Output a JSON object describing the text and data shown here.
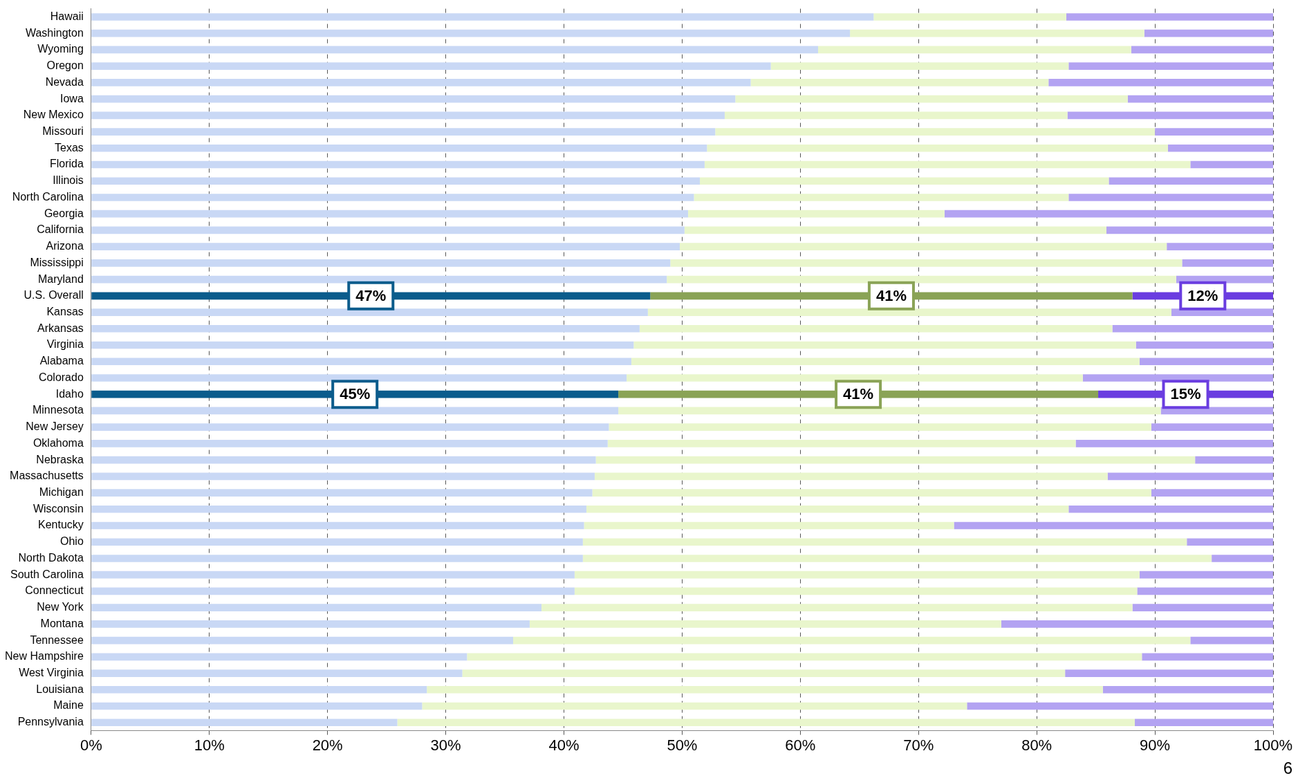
{
  "chart_data": {
    "type": "bar",
    "orientation": "horizontal",
    "stacked": true,
    "grid": "x",
    "categories": [
      "Hawaii",
      "Washington",
      "Wyoming",
      "Oregon",
      "Nevada",
      "Iowa",
      "New Mexico",
      "Missouri",
      "Texas",
      "Florida",
      "Illinois",
      "North Carolina",
      "Georgia",
      "California",
      "Arizona",
      "Mississippi",
      "Maryland",
      "U.S. Overall",
      "Kansas",
      "Arkansas",
      "Virginia",
      "Alabama",
      "Colorado",
      "Idaho",
      "Minnesota",
      "New Jersey",
      "Oklahoma",
      "Nebraska",
      "Massachusetts",
      "Michigan",
      "Wisconsin",
      "Kentucky",
      "Ohio",
      "North Dakota",
      "South Carolina",
      "Connecticut",
      "New York",
      "Montana",
      "Tennessee",
      "New Hampshire",
      "West Virginia",
      "Louisiana",
      "Maine",
      "Pennsylvania"
    ],
    "series": [
      {
        "colors": [
          "#c9d8f5",
          "#c9d8f5",
          "#c9d8f5",
          "#c9d8f5",
          "#c9d8f5",
          "#c9d8f5",
          "#c9d8f5",
          "#c9d8f5",
          "#c9d8f5",
          "#c9d8f5",
          "#c9d8f5",
          "#c9d8f5",
          "#c9d8f5",
          "#c9d8f5",
          "#c9d8f5",
          "#c9d8f5",
          "#c9d8f5",
          "#0b5c8c",
          "#c9d8f5",
          "#c9d8f5",
          "#c9d8f5",
          "#c9d8f5",
          "#c9d8f5",
          "#0b5c8c",
          "#c9d8f5",
          "#c9d8f5",
          "#c9d8f5",
          "#c9d8f5",
          "#c9d8f5",
          "#c9d8f5",
          "#c9d8f5",
          "#c9d8f5",
          "#c9d8f5",
          "#c9d8f5",
          "#c9d8f5",
          "#c9d8f5",
          "#c9d8f5",
          "#c9d8f5",
          "#c9d8f5",
          "#c9d8f5",
          "#c9d8f5",
          "#c9d8f5",
          "#c9d8f5",
          "#c9d8f5"
        ],
        "values": [
          66.2,
          64.2,
          61.5,
          57.5,
          55.8,
          54.5,
          53.6,
          52.8,
          52.1,
          51.9,
          51.5,
          51.0,
          50.5,
          50.2,
          49.8,
          49.0,
          48.7,
          47.3,
          47.1,
          46.4,
          45.9,
          45.7,
          45.3,
          44.6,
          44.6,
          43.8,
          43.7,
          42.7,
          42.6,
          42.4,
          41.9,
          41.7,
          41.6,
          41.6,
          40.9,
          40.9,
          38.1,
          37.1,
          35.7,
          31.8,
          31.4,
          28.4,
          28.0,
          25.9
        ],
        "value_labels": [
          null,
          null,
          null,
          null,
          null,
          null,
          null,
          null,
          null,
          null,
          null,
          null,
          null,
          null,
          null,
          null,
          null,
          "47%",
          null,
          null,
          null,
          null,
          null,
          "45%",
          null,
          null,
          null,
          null,
          null,
          null,
          null,
          null,
          null,
          null,
          null,
          null,
          null,
          null,
          null,
          null,
          null,
          null,
          null,
          null
        ]
      },
      {
        "colors": [
          "#e9f6cc",
          "#e9f6cc",
          "#e9f6cc",
          "#e9f6cc",
          "#e9f6cc",
          "#e9f6cc",
          "#e9f6cc",
          "#e9f6cc",
          "#e9f6cc",
          "#e9f6cc",
          "#e9f6cc",
          "#e9f6cc",
          "#e9f6cc",
          "#e9f6cc",
          "#e9f6cc",
          "#e9f6cc",
          "#e9f6cc",
          "#8aa356",
          "#e9f6cc",
          "#e9f6cc",
          "#e9f6cc",
          "#e9f6cc",
          "#e9f6cc",
          "#8aa356",
          "#e9f6cc",
          "#e9f6cc",
          "#e9f6cc",
          "#e9f6cc",
          "#e9f6cc",
          "#e9f6cc",
          "#e9f6cc",
          "#e9f6cc",
          "#e9f6cc",
          "#e9f6cc",
          "#e9f6cc",
          "#e9f6cc",
          "#e9f6cc",
          "#e9f6cc",
          "#e9f6cc",
          "#e9f6cc",
          "#e9f6cc",
          "#e9f6cc",
          "#e9f6cc",
          "#e9f6cc"
        ],
        "values": [
          16.3,
          24.9,
          26.5,
          25.2,
          25.2,
          33.2,
          29.0,
          37.2,
          39.0,
          41.1,
          34.6,
          31.7,
          21.7,
          35.7,
          41.2,
          43.3,
          43.1,
          40.8,
          44.3,
          40.0,
          42.5,
          43.0,
          38.6,
          40.6,
          45.9,
          45.9,
          39.6,
          50.7,
          43.4,
          47.3,
          40.8,
          31.3,
          51.1,
          53.2,
          47.8,
          47.6,
          50.0,
          39.9,
          57.3,
          57.1,
          51.0,
          57.2,
          46.1,
          62.4
        ],
        "value_labels": [
          null,
          null,
          null,
          null,
          null,
          null,
          null,
          null,
          null,
          null,
          null,
          null,
          null,
          null,
          null,
          null,
          null,
          "41%",
          null,
          null,
          null,
          null,
          null,
          "41%",
          null,
          null,
          null,
          null,
          null,
          null,
          null,
          null,
          null,
          null,
          null,
          null,
          null,
          null,
          null,
          null,
          null,
          null,
          null,
          null
        ]
      },
      {
        "colors": [
          "#b3a3f2",
          "#b3a3f2",
          "#b3a3f2",
          "#b3a3f2",
          "#b3a3f2",
          "#b3a3f2",
          "#b3a3f2",
          "#b3a3f2",
          "#b3a3f2",
          "#b3a3f2",
          "#b3a3f2",
          "#b3a3f2",
          "#b3a3f2",
          "#b3a3f2",
          "#b3a3f2",
          "#b3a3f2",
          "#b3a3f2",
          "#6a3de0",
          "#b3a3f2",
          "#b3a3f2",
          "#b3a3f2",
          "#b3a3f2",
          "#b3a3f2",
          "#6a3de0",
          "#b3a3f2",
          "#b3a3f2",
          "#b3a3f2",
          "#b3a3f2",
          "#b3a3f2",
          "#b3a3f2",
          "#b3a3f2",
          "#b3a3f2",
          "#b3a3f2",
          "#b3a3f2",
          "#b3a3f2",
          "#b3a3f2",
          "#b3a3f2",
          "#b3a3f2",
          "#b3a3f2",
          "#b3a3f2",
          "#b3a3f2",
          "#b3a3f2",
          "#b3a3f2",
          "#b3a3f2"
        ],
        "values": [
          17.5,
          10.9,
          12.0,
          17.3,
          19.0,
          12.3,
          17.4,
          10.0,
          8.9,
          7.0,
          13.9,
          17.3,
          27.8,
          14.1,
          9.0,
          7.7,
          8.2,
          11.9,
          8.6,
          13.6,
          11.6,
          11.3,
          16.1,
          14.8,
          9.5,
          10.3,
          16.7,
          6.6,
          14.0,
          10.3,
          17.3,
          27.0,
          7.3,
          5.2,
          11.3,
          11.5,
          11.9,
          23.0,
          7.0,
          11.1,
          17.6,
          14.4,
          25.9,
          11.7
        ],
        "value_labels": [
          null,
          null,
          null,
          null,
          null,
          null,
          null,
          null,
          null,
          null,
          null,
          null,
          null,
          null,
          null,
          null,
          null,
          "12%",
          null,
          null,
          null,
          null,
          null,
          "15%",
          null,
          null,
          null,
          null,
          null,
          null,
          null,
          null,
          null,
          null,
          null,
          null,
          null,
          null,
          null,
          null,
          null,
          null,
          null,
          null
        ]
      }
    ],
    "xlim": [
      0,
      100
    ],
    "xticks": [
      {
        "value": 0,
        "label": "0%"
      },
      {
        "value": 10,
        "label": "10%"
      },
      {
        "value": 20,
        "label": "20%"
      },
      {
        "value": 30,
        "label": "30%"
      },
      {
        "value": 40,
        "label": "40%"
      },
      {
        "value": 50,
        "label": "50%"
      },
      {
        "value": 60,
        "label": "60%"
      },
      {
        "value": 70,
        "label": "70%"
      },
      {
        "value": 80,
        "label": "80%"
      },
      {
        "value": 90,
        "label": "90%"
      },
      {
        "value": 100,
        "label": "100%"
      }
    ],
    "annotations": [
      "6"
    ]
  }
}
